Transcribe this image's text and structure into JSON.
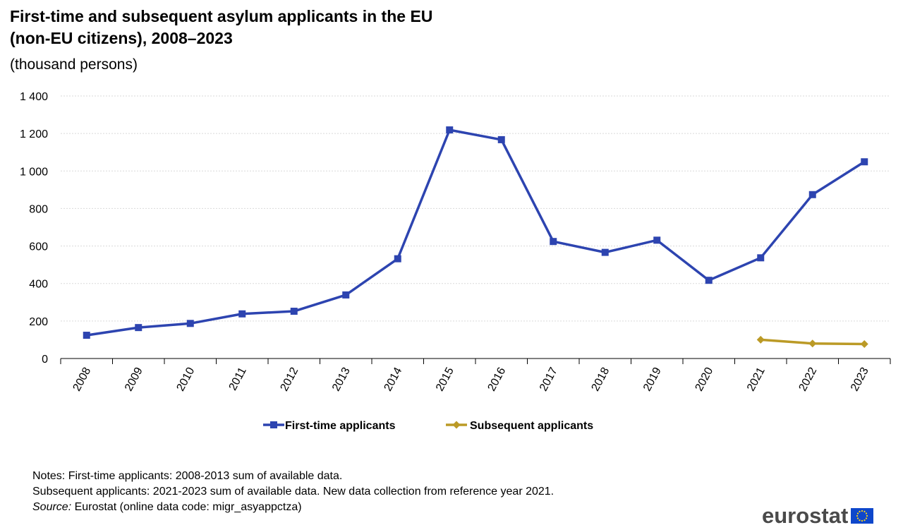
{
  "title": {
    "line1": "First-time and subsequent asylum applicants in the EU",
    "line2": "(non-EU citizens), 2008–2023",
    "unit": "(thousand persons)"
  },
  "chart_data": {
    "type": "line",
    "title": "First-time and subsequent asylum applicants in the EU (non-EU citizens), 2008–2023",
    "ylabel": "thousand persons",
    "xlabel": "",
    "ylim": [
      0,
      1400
    ],
    "yticks": [
      0,
      200,
      400,
      600,
      800,
      1000,
      1200,
      1400
    ],
    "ytick_labels": [
      "0",
      "200",
      "400",
      "600",
      "800",
      "1 000",
      "1 200",
      "1 400"
    ],
    "grid": true,
    "categories": [
      "2008",
      "2009",
      "2010",
      "2011",
      "2012",
      "2013",
      "2014",
      "2015",
      "2016",
      "2017",
      "2018",
      "2019",
      "2020",
      "2021",
      "2022",
      "2023"
    ],
    "legend_position": "bottom-center",
    "series": [
      {
        "name": "First-time applicants",
        "color": "#2d44b0",
        "marker": "square",
        "values": [
          124,
          165,
          187,
          238,
          252,
          339,
          532,
          1219,
          1167,
          624,
          566,
          631,
          417,
          537,
          874,
          1049
        ]
      },
      {
        "name": "Subsequent applicants",
        "color": "#bb9a26",
        "marker": "diamond",
        "values": [
          null,
          null,
          null,
          null,
          null,
          null,
          null,
          null,
          null,
          null,
          null,
          null,
          null,
          100,
          80,
          77
        ]
      }
    ]
  },
  "notes": {
    "line1": "Notes: First-time applicants: 2008-2013  sum of available data.",
    "line2": "Subsequent applicants: 2021-2023  sum of available data. New data collection from reference year 2021.",
    "source_label": "Source:",
    "source_text": " Eurostat (online data code: migr_asyappctza)"
  },
  "logo": {
    "text": "eurostat"
  }
}
